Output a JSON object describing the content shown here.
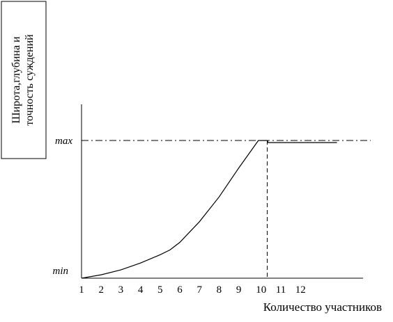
{
  "chart_data": {
    "type": "line",
    "title": "",
    "ylabel": "Широта,глубина и точность суждений",
    "ylabel_lines": [
      "Широта,глубина и",
      "точность суждений"
    ],
    "xlabel": "Количество участников",
    "x_ticks": [
      "1",
      "2",
      "3",
      "4",
      "5",
      "6",
      "7",
      "8",
      "9",
      "10",
      "11",
      "12"
    ],
    "y_ticks": [
      "min",
      "max"
    ],
    "xlim": [
      1,
      15.3
    ],
    "ylim": [
      0,
      1
    ],
    "grid": false,
    "series": [
      {
        "x": [
          1,
          2,
          3,
          4,
          5,
          5.5,
          6,
          7,
          8,
          9,
          10,
          10.45,
          10.5,
          14
        ],
        "y": [
          0,
          0.025,
          0.06,
          0.11,
          0.17,
          0.205,
          0.26,
          0.41,
          0.59,
          0.8,
          1.0,
          1.0,
          0.985,
          0.985
        ]
      }
    ],
    "reference_lines": [
      {
        "orientation": "horizontal",
        "y": 1.0
      },
      {
        "orientation": "vertical",
        "x": 10.45
      }
    ]
  }
}
